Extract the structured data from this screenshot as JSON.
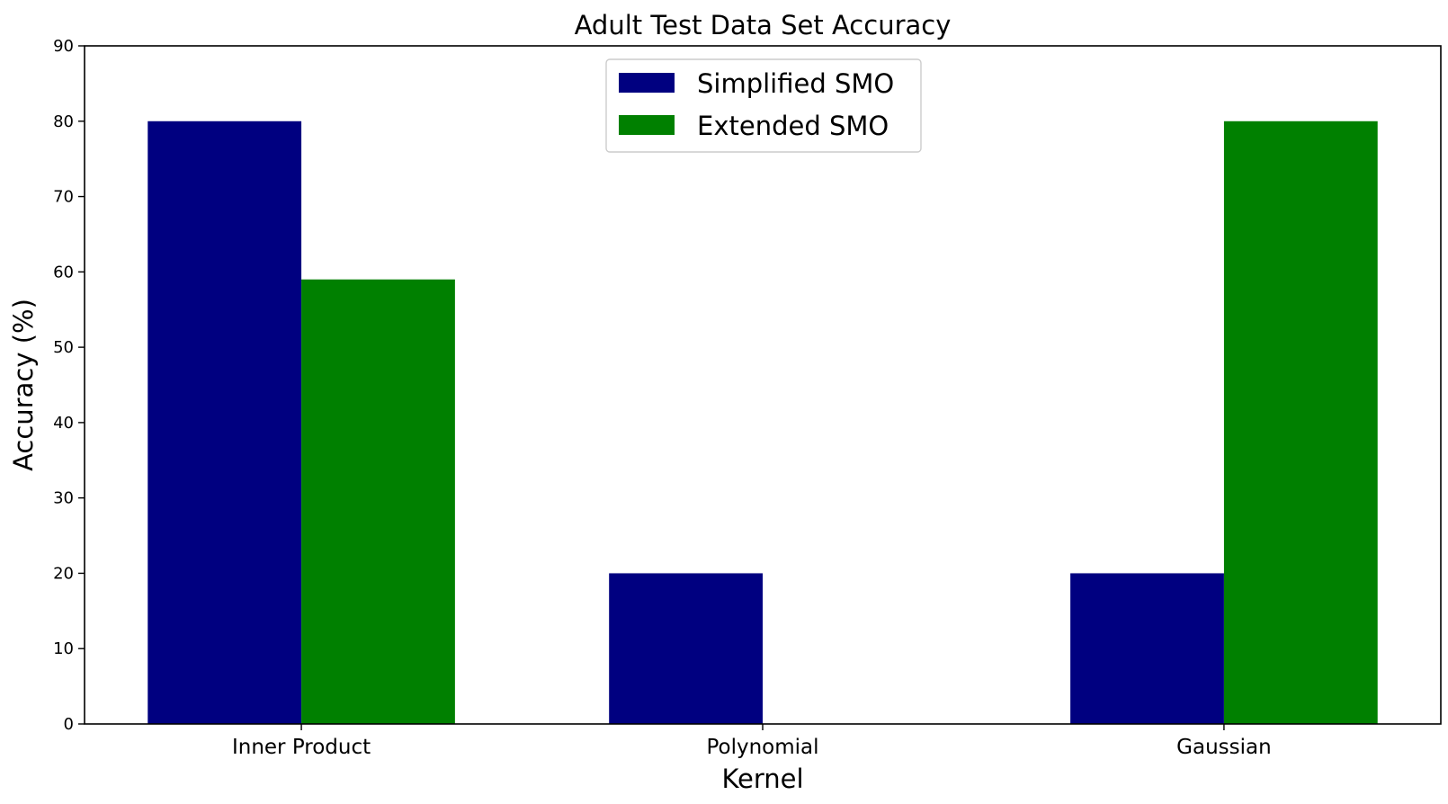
{
  "chart_data": {
    "type": "bar",
    "title": "Adult Test Data Set Accuracy",
    "xlabel": "Kernel",
    "ylabel": "Accuracy (%)",
    "categories": [
      "Inner Product",
      "Polynomial",
      "Gaussian"
    ],
    "ylim": [
      0,
      90
    ],
    "yticks": [
      0,
      10,
      20,
      30,
      40,
      50,
      60,
      70,
      80,
      90
    ],
    "grid": false,
    "legend_position": "top-center",
    "series": [
      {
        "name": "Simplified SMO",
        "color": "#000080",
        "values": [
          80,
          20,
          20
        ]
      },
      {
        "name": "Extended SMO",
        "color": "#008000",
        "values": [
          59,
          0,
          80
        ]
      }
    ]
  }
}
